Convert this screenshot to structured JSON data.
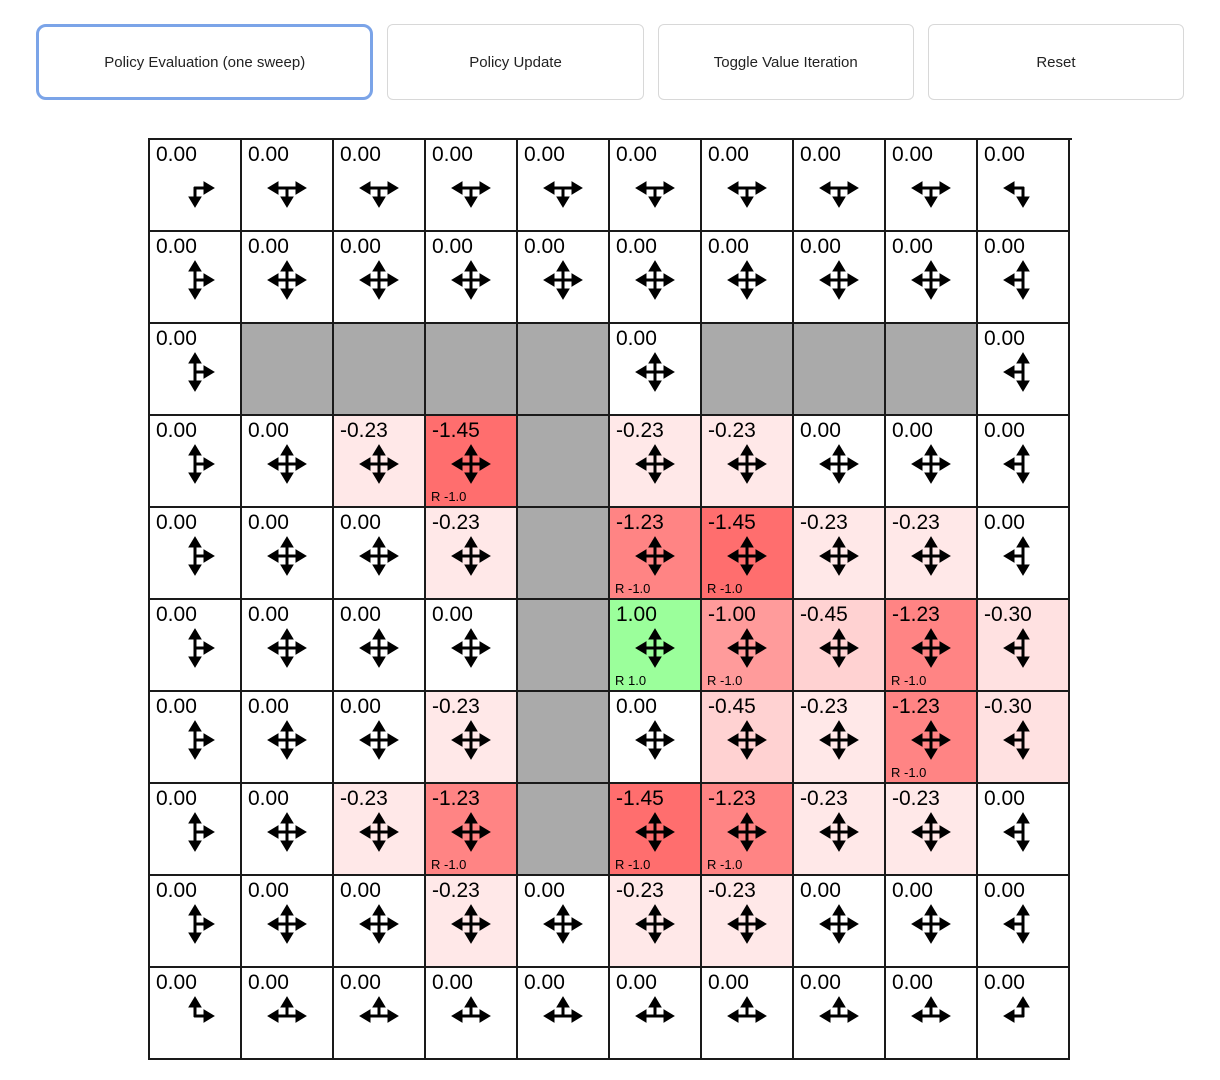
{
  "toolbar": {
    "buttons": [
      {
        "label": "Policy Evaluation (one sweep)",
        "active": true
      },
      {
        "label": "Policy Update",
        "active": false
      },
      {
        "label": "Toggle Value Iteration",
        "active": false
      },
      {
        "label": "Reset",
        "active": false
      }
    ]
  },
  "colors": {
    "wall": "#aaaaaa",
    "grid_line": "#1a1a1a",
    "active_button_border": "#7ba4e8",
    "value_tint_scale_per_unit": 100,
    "positive_value_tint": "green",
    "negative_value_tint": "red"
  },
  "grid": {
    "rows": 10,
    "cols": 10,
    "cells": [
      [
        {
          "value": "0.00",
          "arrows": "dr"
        },
        {
          "value": "0.00",
          "arrows": "ldr"
        },
        {
          "value": "0.00",
          "arrows": "ldr"
        },
        {
          "value": "0.00",
          "arrows": "ldr"
        },
        {
          "value": "0.00",
          "arrows": "ldr"
        },
        {
          "value": "0.00",
          "arrows": "ldr"
        },
        {
          "value": "0.00",
          "arrows": "ldr"
        },
        {
          "value": "0.00",
          "arrows": "ldr"
        },
        {
          "value": "0.00",
          "arrows": "ldr"
        },
        {
          "value": "0.00",
          "arrows": "dl"
        }
      ],
      [
        {
          "value": "0.00",
          "arrows": "udr"
        },
        {
          "value": "0.00",
          "arrows": "udlr"
        },
        {
          "value": "0.00",
          "arrows": "udlr"
        },
        {
          "value": "0.00",
          "arrows": "udlr"
        },
        {
          "value": "0.00",
          "arrows": "udlr"
        },
        {
          "value": "0.00",
          "arrows": "udlr"
        },
        {
          "value": "0.00",
          "arrows": "udlr"
        },
        {
          "value": "0.00",
          "arrows": "udlr"
        },
        {
          "value": "0.00",
          "arrows": "udlr"
        },
        {
          "value": "0.00",
          "arrows": "udl"
        }
      ],
      [
        {
          "value": "0.00",
          "arrows": "udr"
        },
        {
          "wall": true
        },
        {
          "wall": true
        },
        {
          "wall": true
        },
        {
          "wall": true
        },
        {
          "value": "0.00",
          "arrows": "udlr"
        },
        {
          "wall": true
        },
        {
          "wall": true
        },
        {
          "wall": true
        },
        {
          "value": "0.00",
          "arrows": "udl"
        }
      ],
      [
        {
          "value": "0.00",
          "arrows": "udr"
        },
        {
          "value": "0.00",
          "arrows": "udlr"
        },
        {
          "value": "-0.23",
          "arrows": "udlr"
        },
        {
          "value": "-1.45",
          "arrows": "udlr",
          "reward": "R -1.0"
        },
        {
          "wall": true
        },
        {
          "value": "-0.23",
          "arrows": "udlr"
        },
        {
          "value": "-0.23",
          "arrows": "udlr"
        },
        {
          "value": "0.00",
          "arrows": "udlr"
        },
        {
          "value": "0.00",
          "arrows": "udlr"
        },
        {
          "value": "0.00",
          "arrows": "udl"
        }
      ],
      [
        {
          "value": "0.00",
          "arrows": "udr"
        },
        {
          "value": "0.00",
          "arrows": "udlr"
        },
        {
          "value": "0.00",
          "arrows": "udlr"
        },
        {
          "value": "-0.23",
          "arrows": "udlr"
        },
        {
          "wall": true
        },
        {
          "value": "-1.23",
          "arrows": "udlr",
          "reward": "R -1.0"
        },
        {
          "value": "-1.45",
          "arrows": "udlr",
          "reward": "R -1.0"
        },
        {
          "value": "-0.23",
          "arrows": "udlr"
        },
        {
          "value": "-0.23",
          "arrows": "udlr"
        },
        {
          "value": "0.00",
          "arrows": "udl"
        }
      ],
      [
        {
          "value": "0.00",
          "arrows": "udr"
        },
        {
          "value": "0.00",
          "arrows": "udlr"
        },
        {
          "value": "0.00",
          "arrows": "udlr"
        },
        {
          "value": "0.00",
          "arrows": "udlr"
        },
        {
          "wall": true
        },
        {
          "value": "1.00",
          "arrows": "udlr",
          "reward": "R 1.0"
        },
        {
          "value": "-1.00",
          "arrows": "udlr",
          "reward": "R -1.0"
        },
        {
          "value": "-0.45",
          "arrows": "udlr"
        },
        {
          "value": "-1.23",
          "arrows": "udlr",
          "reward": "R -1.0"
        },
        {
          "value": "-0.30",
          "arrows": "udl"
        }
      ],
      [
        {
          "value": "0.00",
          "arrows": "udr"
        },
        {
          "value": "0.00",
          "arrows": "udlr"
        },
        {
          "value": "0.00",
          "arrows": "udlr"
        },
        {
          "value": "-0.23",
          "arrows": "udlr"
        },
        {
          "wall": true
        },
        {
          "value": "0.00",
          "arrows": "udlr"
        },
        {
          "value": "-0.45",
          "arrows": "udlr"
        },
        {
          "value": "-0.23",
          "arrows": "udlr"
        },
        {
          "value": "-1.23",
          "arrows": "udlr",
          "reward": "R -1.0"
        },
        {
          "value": "-0.30",
          "arrows": "udl"
        }
      ],
      [
        {
          "value": "0.00",
          "arrows": "udr"
        },
        {
          "value": "0.00",
          "arrows": "udlr"
        },
        {
          "value": "-0.23",
          "arrows": "udlr"
        },
        {
          "value": "-1.23",
          "arrows": "udlr",
          "reward": "R -1.0"
        },
        {
          "wall": true
        },
        {
          "value": "-1.45",
          "arrows": "udlr",
          "reward": "R -1.0"
        },
        {
          "value": "-1.23",
          "arrows": "udlr",
          "reward": "R -1.0"
        },
        {
          "value": "-0.23",
          "arrows": "udlr"
        },
        {
          "value": "-0.23",
          "arrows": "udlr"
        },
        {
          "value": "0.00",
          "arrows": "udl"
        }
      ],
      [
        {
          "value": "0.00",
          "arrows": "udr"
        },
        {
          "value": "0.00",
          "arrows": "udlr"
        },
        {
          "value": "0.00",
          "arrows": "udlr"
        },
        {
          "value": "-0.23",
          "arrows": "udlr"
        },
        {
          "value": "0.00",
          "arrows": "udlr"
        },
        {
          "value": "-0.23",
          "arrows": "udlr"
        },
        {
          "value": "-0.23",
          "arrows": "udlr"
        },
        {
          "value": "0.00",
          "arrows": "udlr"
        },
        {
          "value": "0.00",
          "arrows": "udlr"
        },
        {
          "value": "0.00",
          "arrows": "udl"
        }
      ],
      [
        {
          "value": "0.00",
          "arrows": "ur"
        },
        {
          "value": "0.00",
          "arrows": "lur"
        },
        {
          "value": "0.00",
          "arrows": "lur"
        },
        {
          "value": "0.00",
          "arrows": "lur"
        },
        {
          "value": "0.00",
          "arrows": "lur"
        },
        {
          "value": "0.00",
          "arrows": "lur"
        },
        {
          "value": "0.00",
          "arrows": "lur"
        },
        {
          "value": "0.00",
          "arrows": "lur"
        },
        {
          "value": "0.00",
          "arrows": "lur"
        },
        {
          "value": "0.00",
          "arrows": "ul"
        }
      ]
    ]
  }
}
